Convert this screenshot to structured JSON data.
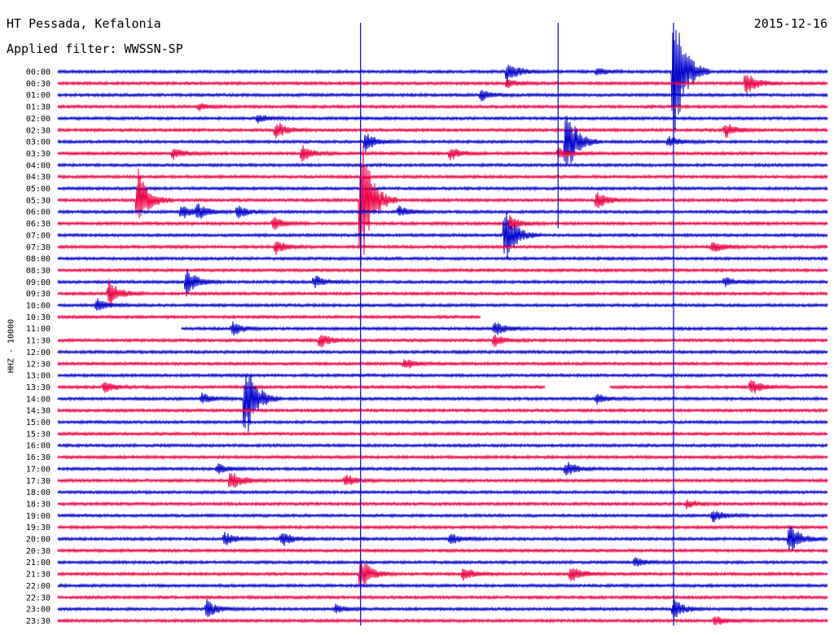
{
  "header": {
    "station": "HT Pessada, Kefalonia",
    "date": "2015-12-16",
    "filter": "Applied filter: WWSSN-SP"
  },
  "chart_data": {
    "type": "line",
    "subtype": "helicorder",
    "title": "HT Pessada, Kefalonia",
    "date": "2015-12-16",
    "filter": "Applied filter: WWSSN-SP",
    "ylabel": "HHZ - 10000",
    "row_interval_minutes": 30,
    "row_labels": [
      "00:00",
      "00:30",
      "01:00",
      "01:30",
      "02:00",
      "02:30",
      "03:00",
      "03:30",
      "04:00",
      "04:30",
      "05:00",
      "05:30",
      "06:00",
      "06:30",
      "07:00",
      "07:30",
      "08:00",
      "08:30",
      "09:00",
      "09:30",
      "10:00",
      "10:30",
      "11:00",
      "11:30",
      "12:00",
      "12:30",
      "13:00",
      "13:30",
      "14:00",
      "14:30",
      "15:00",
      "15:30",
      "16:00",
      "16:30",
      "17:00",
      "17:30",
      "18:00",
      "18:30",
      "19:00",
      "19:30",
      "20:00",
      "20:30",
      "21:00",
      "21:30",
      "22:00",
      "22:30",
      "23:00",
      "23:30"
    ],
    "colors": [
      "#0000cc",
      "#ee0044"
    ],
    "events": [
      {
        "row": 0,
        "minute": 17.5,
        "amp": 1.0
      },
      {
        "row": 0,
        "minute": 21.0,
        "amp": 0.4
      },
      {
        "row": 1,
        "minute": 26.8,
        "amp": 1.2
      },
      {
        "row": 1,
        "minute": 17.5,
        "amp": 0.4
      },
      {
        "row": 0,
        "minute": 24.0,
        "amp": 7.0
      },
      {
        "row": 2,
        "minute": 16.5,
        "amp": 0.5
      },
      {
        "row": 3,
        "minute": 5.5,
        "amp": 0.3
      },
      {
        "row": 4,
        "minute": 7.8,
        "amp": 0.4
      },
      {
        "row": 5,
        "minute": 8.5,
        "amp": 0.8
      },
      {
        "row": 5,
        "minute": 26.0,
        "amp": 0.7
      },
      {
        "row": 6,
        "minute": 12.0,
        "amp": 0.9
      },
      {
        "row": 6,
        "minute": 23.8,
        "amp": 0.5
      },
      {
        "row": 7,
        "minute": 4.5,
        "amp": 0.5
      },
      {
        "row": 7,
        "minute": 9.5,
        "amp": 0.7
      },
      {
        "row": 7,
        "minute": 15.3,
        "amp": 0.6
      },
      {
        "row": 7,
        "minute": 19.5,
        "amp": 0.5
      },
      {
        "row": 6,
        "minute": 19.8,
        "amp": 3.5
      },
      {
        "row": 11,
        "minute": 21.0,
        "amp": 0.8
      },
      {
        "row": 11,
        "minute": 3.1,
        "amp": 3.0
      },
      {
        "row": 12,
        "minute": 4.8,
        "amp": 0.7
      },
      {
        "row": 12,
        "minute": 5.4,
        "amp": 0.7
      },
      {
        "row": 12,
        "minute": 7.0,
        "amp": 0.6
      },
      {
        "row": 12,
        "minute": 13.3,
        "amp": 0.5
      },
      {
        "row": 13,
        "minute": 8.4,
        "amp": 0.6
      },
      {
        "row": 14,
        "minute": 17.4,
        "amp": 2.8
      },
      {
        "row": 15,
        "minute": 8.5,
        "amp": 0.6
      },
      {
        "row": 15,
        "minute": 25.5,
        "amp": 0.6
      },
      {
        "row": 11,
        "minute": 11.8,
        "amp": 7.0
      },
      {
        "row": 18,
        "minute": 5.0,
        "amp": 1.3
      },
      {
        "row": 18,
        "minute": 10.0,
        "amp": 0.6
      },
      {
        "row": 18,
        "minute": 26.0,
        "amp": 0.4
      },
      {
        "row": 19,
        "minute": 2.0,
        "amp": 1.2
      },
      {
        "row": 20,
        "minute": 1.5,
        "amp": 0.6
      },
      {
        "row": 22,
        "minute": 6.8,
        "amp": 0.6
      },
      {
        "row": 22,
        "minute": 17.0,
        "amp": 0.7
      },
      {
        "row": 23,
        "minute": 10.2,
        "amp": 0.7
      },
      {
        "row": 25,
        "minute": 13.5,
        "amp": 0.5
      },
      {
        "row": 27,
        "minute": 1.8,
        "amp": 0.5
      },
      {
        "row": 27,
        "minute": 27.0,
        "amp": 0.7
      },
      {
        "row": 28,
        "minute": 5.6,
        "amp": 0.5
      },
      {
        "row": 28,
        "minute": 21.0,
        "amp": 0.4
      },
      {
        "row": 28,
        "minute": 7.3,
        "amp": 4.0
      },
      {
        "row": 34,
        "minute": 6.2,
        "amp": 0.5
      },
      {
        "row": 34,
        "minute": 19.8,
        "amp": 0.7
      },
      {
        "row": 35,
        "minute": 6.7,
        "amp": 1.0
      },
      {
        "row": 35,
        "minute": 11.2,
        "amp": 0.6
      },
      {
        "row": 37,
        "minute": 24.5,
        "amp": 0.4
      },
      {
        "row": 38,
        "minute": 25.5,
        "amp": 0.6
      },
      {
        "row": 40,
        "minute": 6.5,
        "amp": 0.6
      },
      {
        "row": 40,
        "minute": 8.7,
        "amp": 0.8
      },
      {
        "row": 40,
        "minute": 15.3,
        "amp": 0.5
      },
      {
        "row": 40,
        "minute": 28.5,
        "amp": 1.5
      },
      {
        "row": 42,
        "minute": 22.5,
        "amp": 0.4
      },
      {
        "row": 43,
        "minute": 11.8,
        "amp": 1.5
      },
      {
        "row": 43,
        "minute": 15.8,
        "amp": 0.6
      },
      {
        "row": 43,
        "minute": 20.0,
        "amp": 0.8
      },
      {
        "row": 46,
        "minute": 5.8,
        "amp": 0.8
      },
      {
        "row": 46,
        "minute": 10.8,
        "amp": 0.4
      },
      {
        "row": 46,
        "minute": 24.0,
        "amp": 0.9
      },
      {
        "row": 47,
        "minute": 25.6,
        "amp": 0.5
      },
      {
        "row": 13,
        "minute": 17.6,
        "amp": 0.7
      },
      {
        "row": 23,
        "minute": 17.0,
        "amp": 0.5
      }
    ],
    "spikes": [
      {
        "minute": 11.8,
        "from_row": 0,
        "to_row": 47
      },
      {
        "minute": 19.5,
        "from_row": 0,
        "to_row": 13
      },
      {
        "minute": 24.0,
        "from_row": 0,
        "to_row": 47
      }
    ],
    "gaps": [
      {
        "row": 21,
        "from_minute": 16.5,
        "to_minute": 30
      },
      {
        "row": 22,
        "from_minute": 0,
        "to_minute": 4.8
      },
      {
        "row": 27,
        "from_minute": 19.0,
        "to_minute": 21.5
      }
    ],
    "grid": false
  }
}
